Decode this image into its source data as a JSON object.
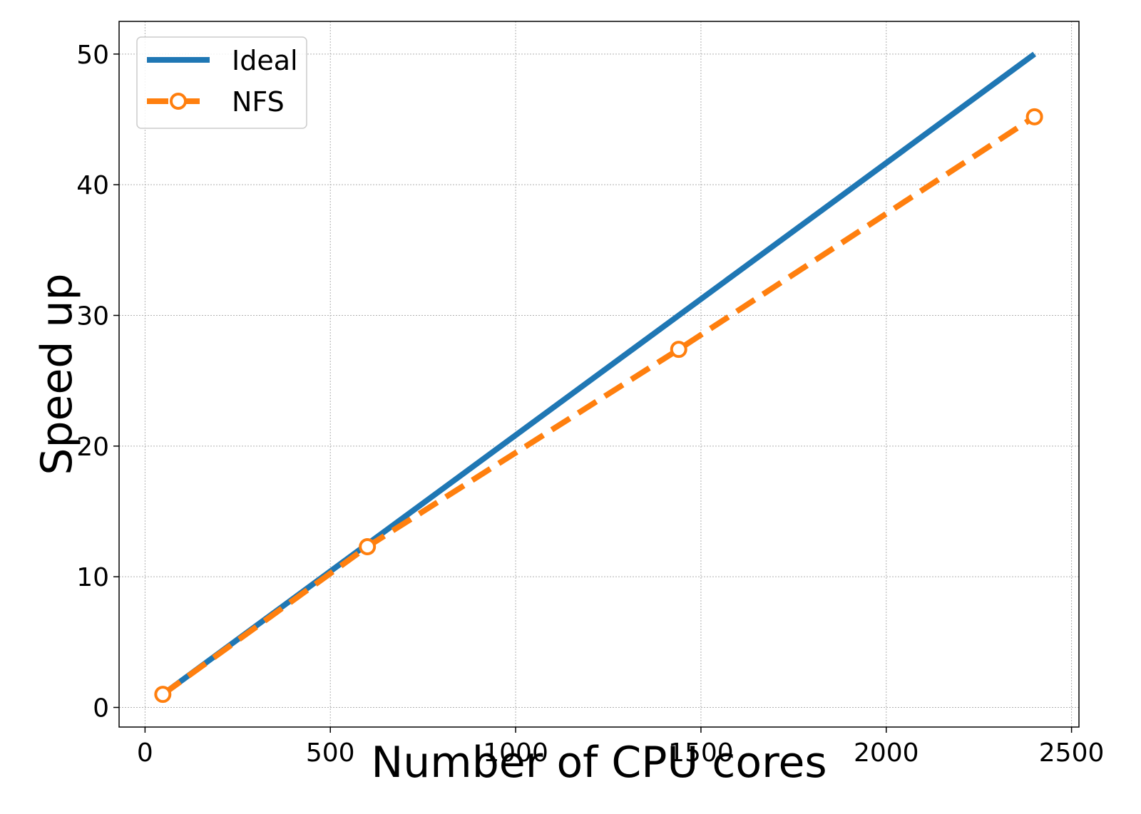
{
  "chart_data": {
    "type": "line",
    "title": "",
    "xlabel": "Number of CPU cores",
    "ylabel": "Speed up",
    "xlim": [
      -70,
      2520
    ],
    "ylim": [
      -1.5,
      52.5
    ],
    "xticks": [
      0,
      500,
      1000,
      1500,
      2000,
      2500
    ],
    "yticks": [
      0,
      10,
      20,
      30,
      40,
      50
    ],
    "grid": true,
    "legend_position": "top-left",
    "series": [
      {
        "name": "Ideal",
        "color": "#1f77b4",
        "line_style": "solid",
        "marker": "none",
        "x": [
          48,
          2400
        ],
        "y": [
          1,
          50
        ]
      },
      {
        "name": "NFS",
        "color": "#ff7f0e",
        "line_style": "dashed",
        "marker": "circle",
        "x": [
          48,
          600,
          1440,
          2400
        ],
        "y": [
          1.0,
          12.3,
          27.4,
          45.2
        ]
      }
    ]
  }
}
